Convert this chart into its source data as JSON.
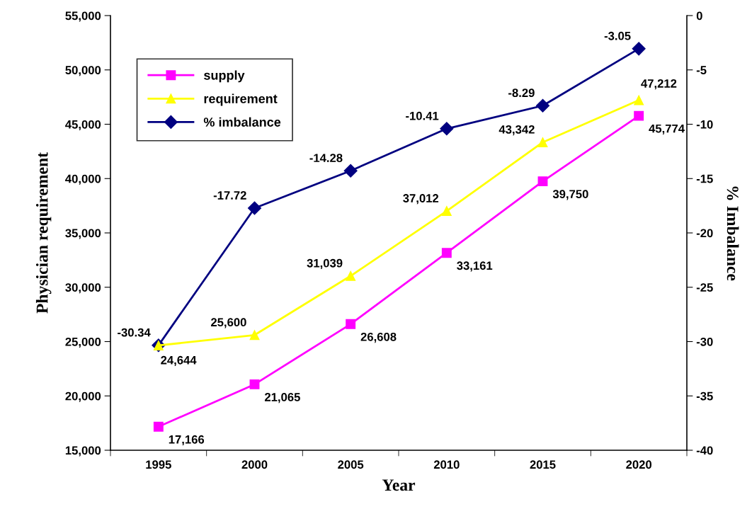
{
  "chart_data": {
    "type": "line",
    "xlabel": "Year",
    "ylabel": "Physician requirement",
    "y2label": "% Imbalance",
    "categories": [
      "1995",
      "2000",
      "2005",
      "2010",
      "2015",
      "2020"
    ],
    "series": [
      {
        "name": "supply",
        "color": "#ff00ff",
        "marker": "square",
        "values": [
          17166,
          21065,
          26608,
          33161,
          39750,
          45774
        ],
        "value_labels": [
          "17,166",
          "21,065",
          "26,608",
          "33,161",
          "39,750",
          "45,774"
        ]
      },
      {
        "name": "requirement",
        "color": "#ffff00",
        "marker": "triangle",
        "values": [
          24644,
          25600,
          31039,
          37012,
          43342,
          47212
        ],
        "value_labels": [
          "24,644",
          "25,600",
          "31,039",
          "37,012",
          "43,342",
          "47,212"
        ]
      },
      {
        "name": "% imbalance",
        "color": "#000080",
        "marker": "diamond",
        "axis": "y2",
        "values": [
          -30.34,
          -17.72,
          -14.28,
          -10.41,
          -8.29,
          -3.05
        ]
      }
    ],
    "ylim": [
      15000,
      55000
    ],
    "yticks": [
      {
        "value": 15000,
        "label": "15,000"
      },
      {
        "value": 20000,
        "label": "20,000"
      },
      {
        "value": 25000,
        "label": "25,000"
      },
      {
        "value": 30000,
        "label": "30,000"
      },
      {
        "value": 35000,
        "label": "35,000"
      },
      {
        "value": 40000,
        "label": "40,000"
      },
      {
        "value": 45000,
        "label": "45,000"
      },
      {
        "value": 50000,
        "label": "50,000"
      },
      {
        "value": 55000,
        "label": "55,000"
      }
    ],
    "y2lim": [
      -40,
      0
    ],
    "y2ticks": [
      -40,
      -35,
      -30,
      -25,
      -20,
      -15,
      -10,
      -5,
      0
    ],
    "data_labels": true,
    "grid": false,
    "legend": "top left",
    "line_style": "solid"
  }
}
